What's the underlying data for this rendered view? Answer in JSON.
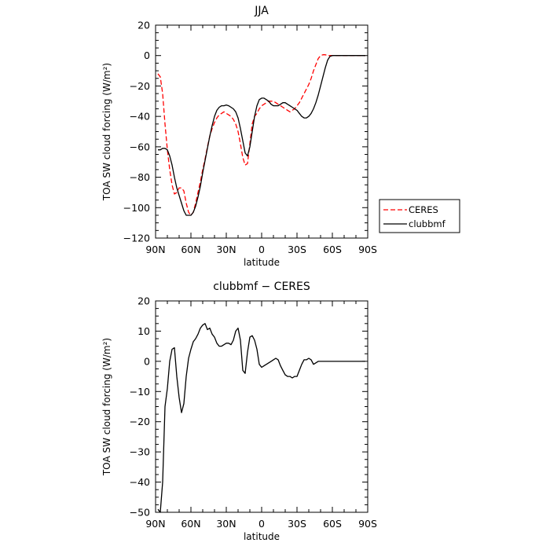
{
  "chart_data": [
    {
      "type": "line",
      "title": "JJA",
      "xlabel": "latitude",
      "ylabel": "TOA SW cloud forcing (W/m²)",
      "xlim": [
        90,
        -90
      ],
      "ylim": [
        -120,
        20
      ],
      "x_ticks": [
        90,
        60,
        30,
        0,
        -30,
        -60,
        -90
      ],
      "x_tick_labels": [
        "90N",
        "60N",
        "30N",
        "0",
        "30S",
        "60S",
        "90S"
      ],
      "y_ticks": [
        20,
        0,
        -20,
        -40,
        -60,
        -80,
        -100,
        -120
      ],
      "y_tick_labels": [
        "20",
        "0",
        "−20",
        "−40",
        "−60",
        "−80",
        "−100",
        "−120"
      ],
      "legend_position": "right, outside",
      "series": [
        {
          "name": "CERES",
          "color": "#ff0000",
          "dash": "dashed",
          "x": [
            88,
            86,
            84,
            82,
            80,
            78,
            76,
            74,
            72,
            70,
            68,
            66,
            64,
            62,
            60,
            58,
            56,
            54,
            52,
            50,
            48,
            46,
            44,
            42,
            40,
            38,
            36,
            34,
            32,
            30,
            28,
            26,
            24,
            22,
            20,
            18,
            16,
            14,
            12,
            10,
            8,
            6,
            4,
            2,
            0,
            -2,
            -4,
            -6,
            -8,
            -10,
            -12,
            -14,
            -16,
            -18,
            -20,
            -22,
            -24,
            -26,
            -28,
            -30,
            -32,
            -34,
            -36,
            -38,
            -40,
            -42,
            -44,
            -46,
            -48,
            -50,
            -52,
            -54,
            -56,
            -58,
            -60,
            -62,
            -64,
            -66,
            -68,
            -70,
            -72,
            -74,
            -76,
            -78,
            -80,
            -82,
            -84,
            -86,
            -88
          ],
          "y": [
            -12,
            -14,
            -25,
            -45,
            -62,
            -75,
            -85,
            -91,
            -90,
            -87,
            -87,
            -89,
            -97,
            -103,
            -105,
            -103,
            -97,
            -90,
            -83,
            -75,
            -68,
            -60,
            -53,
            -48,
            -44,
            -41,
            -39,
            -38,
            -37,
            -38,
            -39,
            -40,
            -42,
            -45,
            -50,
            -58,
            -67,
            -72,
            -71,
            -58,
            -45,
            -40,
            -38,
            -35,
            -33,
            -32,
            -31,
            -30,
            -30,
            -30,
            -31,
            -32,
            -33,
            -34,
            -35,
            -36,
            -37,
            -36,
            -35,
            -33,
            -31,
            -28,
            -25,
            -22,
            -19,
            -15,
            -10,
            -6,
            -2,
            0,
            0.5,
            0.5,
            0,
            0,
            0,
            0,
            0,
            0,
            0,
            0,
            0,
            0,
            0,
            0,
            0,
            0,
            0,
            0,
            0
          ]
        },
        {
          "name": "clubbmf",
          "color": "#000000",
          "dash": "solid",
          "x": [
            88,
            86,
            84,
            82,
            80,
            78,
            76,
            74,
            72,
            70,
            68,
            66,
            64,
            62,
            60,
            58,
            56,
            54,
            52,
            50,
            48,
            46,
            44,
            42,
            40,
            38,
            36,
            34,
            32,
            30,
            28,
            26,
            24,
            22,
            20,
            18,
            16,
            14,
            12,
            10,
            8,
            6,
            4,
            2,
            0,
            -2,
            -4,
            -6,
            -8,
            -10,
            -12,
            -14,
            -16,
            -18,
            -20,
            -22,
            -24,
            -26,
            -28,
            -30,
            -32,
            -34,
            -36,
            -38,
            -40,
            -42,
            -44,
            -46,
            -48,
            -50,
            -52,
            -54,
            -56,
            -58,
            -60,
            -62,
            -64,
            -66,
            -68,
            -70,
            -72,
            -74,
            -76,
            -78,
            -80,
            -82,
            -84,
            -86,
            -88
          ],
          "y": [
            -62,
            -62,
            -61,
            -61,
            -62,
            -66,
            -72,
            -80,
            -87,
            -92,
            -97,
            -102,
            -105,
            -105,
            -105,
            -103,
            -99,
            -93,
            -86,
            -77,
            -69,
            -61,
            -53,
            -46,
            -40,
            -36,
            -34,
            -33,
            -33,
            -32.5,
            -33,
            -34,
            -35,
            -37,
            -41,
            -48,
            -56,
            -64,
            -66,
            -60,
            -50,
            -40,
            -33,
            -29,
            -28,
            -28,
            -29,
            -30,
            -32,
            -33,
            -33,
            -33,
            -32,
            -31,
            -31,
            -32,
            -33,
            -34,
            -35,
            -36,
            -38,
            -40,
            -41,
            -41,
            -40,
            -38,
            -35,
            -31,
            -26,
            -20,
            -14,
            -8,
            -3,
            -0.5,
            0,
            0,
            0,
            0,
            0,
            0,
            0,
            0,
            0,
            0,
            0,
            0,
            0,
            0,
            0
          ]
        }
      ]
    },
    {
      "type": "line",
      "title": "clubbmf − CERES",
      "xlabel": "latitude",
      "ylabel": "TOA SW cloud forcing (W/m²)",
      "xlim": [
        90,
        -90
      ],
      "ylim": [
        -50,
        20
      ],
      "x_ticks": [
        90,
        60,
        30,
        0,
        -30,
        -60,
        -90
      ],
      "x_tick_labels": [
        "90N",
        "60N",
        "30N",
        "0",
        "30S",
        "60S",
        "90S"
      ],
      "y_ticks": [
        20,
        10,
        0,
        -10,
        -20,
        -30,
        -40,
        -50
      ],
      "y_tick_labels": [
        "20",
        "10",
        "0",
        "−10",
        "−20",
        "−30",
        "−40",
        "−50"
      ],
      "series": [
        {
          "color": "#000000",
          "dash": "solid",
          "x": [
            88,
            86,
            84,
            82,
            80,
            78,
            76,
            74,
            72,
            70,
            68,
            66,
            64,
            62,
            60,
            58,
            56,
            54,
            52,
            50,
            48,
            46,
            44,
            42,
            40,
            38,
            36,
            34,
            32,
            30,
            28,
            26,
            24,
            22,
            20,
            18,
            16,
            14,
            12,
            10,
            8,
            6,
            4,
            2,
            0,
            -2,
            -4,
            -6,
            -8,
            -10,
            -12,
            -14,
            -16,
            -18,
            -20,
            -22,
            -24,
            -26,
            -28,
            -30,
            -32,
            -34,
            -36,
            -38,
            -40,
            -42,
            -44,
            -46,
            -48,
            -50,
            -52,
            -54,
            -56,
            -58,
            -60,
            -62,
            -64,
            -66,
            -68,
            -70,
            -72,
            -74,
            -76,
            -78,
            -80,
            -82,
            -84,
            -86,
            -88
          ],
          "y": [
            -49,
            -50,
            -40,
            -15,
            -9,
            0,
            4,
            4.5,
            -5,
            -12,
            -17,
            -14,
            -5,
            1,
            4,
            6.5,
            7.5,
            9,
            11,
            12,
            12.5,
            10.5,
            11,
            9,
            8,
            6,
            5,
            5,
            5.5,
            6,
            6,
            5.5,
            7,
            10,
            11,
            7,
            -3,
            -4,
            3,
            8,
            8.5,
            7,
            4,
            -1,
            -2,
            -1.5,
            -1,
            -0.5,
            0,
            0.5,
            1,
            0.5,
            -1.5,
            -3,
            -4.5,
            -5,
            -5,
            -5.5,
            -5,
            -5,
            -3,
            -1,
            0.5,
            0.5,
            1,
            0.5,
            -1,
            -0.5,
            0,
            0,
            0,
            0,
            0,
            0,
            0,
            0,
            0,
            0,
            0,
            0,
            0,
            0,
            0,
            0,
            0,
            0,
            0,
            0,
            0
          ]
        }
      ]
    }
  ]
}
